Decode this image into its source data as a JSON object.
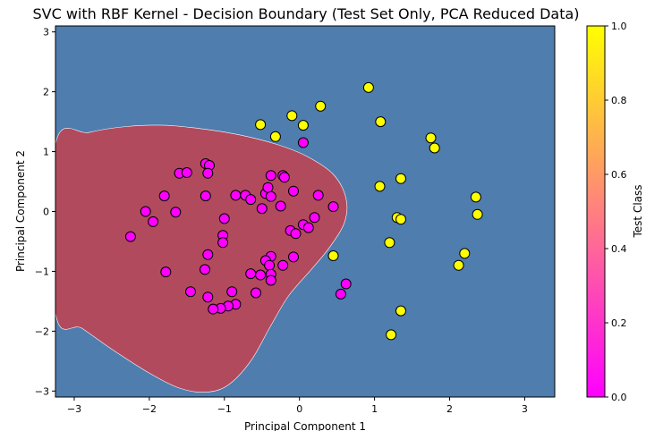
{
  "chart_data": {
    "type": "scatter",
    "title": "SVC with RBF Kernel - Decision Boundary (Test Set Only, PCA Reduced Data)",
    "xlabel": "Principal Component 1",
    "ylabel": "Principal Component 2",
    "xlim": [
      -3.25,
      3.4
    ],
    "ylim": [
      -3.1,
      3.1
    ],
    "xticks": [
      -3,
      -2,
      -1,
      0,
      1,
      2,
      3
    ],
    "yticks": [
      -3,
      -2,
      -1,
      0,
      1,
      2,
      3
    ],
    "grid": false,
    "background_colors": {
      "class_0_region": "#b24a5e",
      "class_1_region": "#4e7dae"
    },
    "decision_region_class_0": [
      [
        -3.25,
        1.12
      ],
      [
        -2.8,
        1.32
      ],
      [
        -2.3,
        1.42
      ],
      [
        -1.8,
        1.44
      ],
      [
        -1.3,
        1.38
      ],
      [
        -0.8,
        1.28
      ],
      [
        -0.3,
        1.12
      ],
      [
        0.1,
        0.92
      ],
      [
        0.45,
        0.62
      ],
      [
        0.62,
        0.22
      ],
      [
        0.6,
        -0.18
      ],
      [
        0.4,
        -0.6
      ],
      [
        0.15,
        -0.98
      ],
      [
        -0.15,
        -1.42
      ],
      [
        -0.4,
        -1.95
      ],
      [
        -0.65,
        -2.5
      ],
      [
        -0.95,
        -2.9
      ],
      [
        -1.25,
        -3.02
      ],
      [
        -1.6,
        -2.95
      ],
      [
        -2.0,
        -2.7
      ],
      [
        -2.5,
        -2.3
      ],
      [
        -2.9,
        -1.95
      ],
      [
        -3.25,
        -1.68
      ]
    ],
    "colorbar": {
      "label": "Test Class",
      "range": [
        0,
        1
      ],
      "ticks": [
        0.0,
        0.2,
        0.4,
        0.6,
        0.8,
        1.0
      ],
      "colormap": "spring",
      "color_low": "#ff00ff",
      "color_high": "#ffff00"
    },
    "series": [
      {
        "class": 0,
        "color": "#ff00ff",
        "points": [
          [
            -1.25,
            0.8
          ],
          [
            -1.2,
            0.77
          ],
          [
            -1.6,
            0.64
          ],
          [
            -1.5,
            0.65
          ],
          [
            -1.22,
            0.64
          ],
          [
            -1.8,
            0.26
          ],
          [
            -1.25,
            0.26
          ],
          [
            -0.85,
            0.27
          ],
          [
            -0.72,
            0.27
          ],
          [
            -0.65,
            0.2
          ],
          [
            -0.45,
            0.3
          ],
          [
            -0.42,
            0.4
          ],
          [
            -0.38,
            0.6
          ],
          [
            -0.22,
            0.6
          ],
          [
            -0.2,
            0.57
          ],
          [
            -0.08,
            0.34
          ],
          [
            -0.38,
            0.25
          ],
          [
            -0.5,
            0.05
          ],
          [
            -0.25,
            0.09
          ],
          [
            -2.05,
            0.0
          ],
          [
            -1.65,
            -0.01
          ],
          [
            -1.95,
            -0.17
          ],
          [
            -1.0,
            -0.12
          ],
          [
            -2.25,
            -0.42
          ],
          [
            -1.02,
            -0.4
          ],
          [
            -1.02,
            -0.52
          ],
          [
            0.25,
            0.27
          ],
          [
            0.45,
            0.08
          ],
          [
            0.2,
            -0.1
          ],
          [
            0.05,
            -0.22
          ],
          [
            0.12,
            -0.27
          ],
          [
            -0.12,
            -0.32
          ],
          [
            -0.05,
            -0.37
          ],
          [
            -1.22,
            -0.72
          ],
          [
            -0.38,
            -0.75
          ],
          [
            -0.08,
            -0.76
          ],
          [
            -0.45,
            -0.82
          ],
          [
            -0.4,
            -0.9
          ],
          [
            -0.22,
            -0.9
          ],
          [
            -1.78,
            -1.01
          ],
          [
            -1.26,
            -0.97
          ],
          [
            -0.65,
            -1.04
          ],
          [
            -0.52,
            -1.06
          ],
          [
            -0.38,
            -1.05
          ],
          [
            -0.38,
            -1.15
          ],
          [
            -1.45,
            -1.34
          ],
          [
            -0.9,
            -1.34
          ],
          [
            -0.58,
            -1.36
          ],
          [
            -1.22,
            -1.43
          ],
          [
            -0.85,
            -1.55
          ],
          [
            -0.95,
            -1.58
          ],
          [
            -1.05,
            -1.62
          ],
          [
            -1.15,
            -1.63
          ],
          [
            0.05,
            1.15
          ],
          [
            0.62,
            -1.21
          ],
          [
            0.55,
            -1.38
          ]
        ]
      },
      {
        "class": 1,
        "color": "#ffff00",
        "points": [
          [
            0.92,
            2.07
          ],
          [
            0.28,
            1.76
          ],
          [
            -0.1,
            1.6
          ],
          [
            -0.52,
            1.45
          ],
          [
            0.05,
            1.44
          ],
          [
            1.08,
            1.5
          ],
          [
            -0.32,
            1.25
          ],
          [
            1.75,
            1.23
          ],
          [
            1.8,
            1.06
          ],
          [
            1.07,
            0.42
          ],
          [
            1.35,
            0.55
          ],
          [
            2.35,
            0.24
          ],
          [
            1.3,
            -0.1
          ],
          [
            1.35,
            -0.13
          ],
          [
            2.37,
            -0.05
          ],
          [
            1.2,
            -0.52
          ],
          [
            0.45,
            -0.74
          ],
          [
            2.2,
            -0.7
          ],
          [
            2.12,
            -0.9
          ],
          [
            1.35,
            -1.66
          ],
          [
            1.22,
            -2.06
          ]
        ]
      }
    ]
  }
}
